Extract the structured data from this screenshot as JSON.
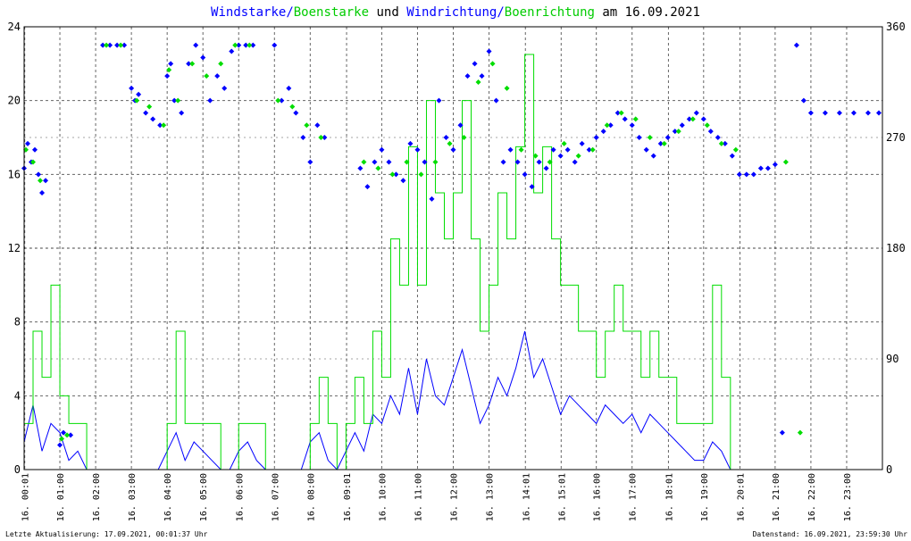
{
  "title": {
    "part1": "Windstarke/",
    "part2": "Boenstarke",
    "part3": " und ",
    "part4": "Windrichtung/",
    "part5": "Boenrichtung",
    "part6": " am 16.09.2021"
  },
  "footer": {
    "left": "Letzte Aktualisierung: 17.09.2021, 00:01:37 Uhr",
    "right": "Datenstand: 16.09.2021, 23:59:30 Uhr"
  },
  "colors": {
    "wind": "#0000ff",
    "gust": "#00dd00",
    "title": "#0000ff",
    "grid": "#000000"
  },
  "chart_data": {
    "type": "line",
    "left_axis": {
      "ylim": [
        0,
        24
      ],
      "ticks": [
        0,
        4,
        8,
        12,
        16,
        20,
        24
      ]
    },
    "right_axis": {
      "ylim": [
        0,
        360
      ],
      "ticks": [
        0,
        90,
        180,
        270,
        360
      ]
    },
    "x_tick_labels": [
      "16. 00:01",
      "16. 01:00",
      "16. 02:00",
      "16. 03:00",
      "16. 04:00",
      "16. 05:00",
      "16. 06:00",
      "16. 07:00",
      "16. 08:00",
      "16. 09:01",
      "16. 10:00",
      "16. 11:00",
      "16. 12:00",
      "16. 13:00",
      "16. 14:01",
      "16. 15:01",
      "16. 16:00",
      "16. 17:00",
      "16. 18:01",
      "16. 19:00",
      "16. 20:01",
      "16. 21:00",
      "16. 22:00",
      "16. 23:00"
    ],
    "x_tick_hours": [
      0.017,
      1,
      2,
      3,
      4,
      5,
      6,
      7,
      8,
      9.017,
      10,
      11,
      12,
      13,
      14.017,
      15.017,
      16,
      17,
      18.017,
      19,
      20.017,
      21,
      22,
      23
    ],
    "xlim_hours": [
      0,
      24
    ],
    "grid": true,
    "series": [
      {
        "name": "Windstarke",
        "axis": "left",
        "style": "line",
        "x": [
          0.0,
          0.25,
          0.5,
          0.75,
          1.0,
          1.25,
          1.5,
          1.75,
          2.0,
          2.25,
          2.5,
          2.75,
          3.0,
          3.25,
          3.5,
          3.75,
          4.0,
          4.25,
          4.5,
          4.75,
          5.0,
          5.25,
          5.5,
          5.75,
          6.0,
          6.25,
          6.5,
          6.75,
          7.0,
          7.25,
          7.5,
          7.75,
          8.0,
          8.25,
          8.5,
          8.75,
          9.0,
          9.25,
          9.5,
          9.75,
          10.0,
          10.25,
          10.5,
          10.75,
          11.0,
          11.25,
          11.5,
          11.75,
          12.0,
          12.25,
          12.5,
          12.75,
          13.0,
          13.25,
          13.5,
          13.75,
          14.0,
          14.25,
          14.5,
          14.75,
          15.0,
          15.25,
          15.5,
          15.75,
          16.0,
          16.25,
          16.5,
          16.75,
          17.0,
          17.25,
          17.5,
          17.75,
          18.0,
          18.25,
          18.5,
          18.75,
          19.0,
          19.25,
          19.5,
          19.75,
          20.0
        ],
        "y": [
          1.5,
          3.5,
          1.0,
          2.5,
          2.0,
          0.5,
          1.0,
          0.0,
          0.0,
          0.0,
          0.0,
          0.0,
          0.0,
          0.0,
          0.0,
          0.0,
          1.0,
          2.0,
          0.5,
          1.5,
          1.0,
          0.5,
          0.0,
          0.0,
          1.0,
          1.5,
          0.5,
          0.0,
          0.0,
          0.0,
          0.0,
          0.0,
          1.5,
          2.0,
          0.5,
          0.0,
          1.0,
          2.0,
          1.0,
          3.0,
          2.5,
          4.0,
          3.0,
          5.5,
          3.0,
          6.0,
          4.0,
          3.5,
          5.0,
          6.5,
          4.5,
          2.5,
          3.5,
          5.0,
          4.0,
          5.5,
          7.5,
          5.0,
          6.0,
          4.5,
          3.0,
          4.0,
          3.5,
          3.0,
          2.5,
          3.5,
          3.0,
          2.5,
          3.0,
          2.0,
          3.0,
          2.5,
          2.0,
          1.5,
          1.0,
          0.5,
          0.5,
          1.5,
          1.0,
          0.0,
          0.0
        ]
      },
      {
        "name": "Boenstarke",
        "axis": "left",
        "style": "step",
        "x": [
          0.0,
          0.25,
          0.5,
          0.75,
          1.0,
          1.25,
          1.5,
          1.75,
          2.0,
          2.25,
          2.5,
          2.75,
          3.0,
          3.25,
          3.5,
          3.75,
          4.0,
          4.25,
          4.5,
          4.75,
          5.0,
          5.25,
          5.5,
          5.75,
          6.0,
          6.25,
          6.5,
          6.75,
          7.0,
          7.25,
          7.5,
          7.75,
          8.0,
          8.25,
          8.5,
          8.75,
          9.0,
          9.25,
          9.5,
          9.75,
          10.0,
          10.25,
          10.5,
          10.75,
          11.0,
          11.25,
          11.5,
          11.75,
          12.0,
          12.25,
          12.5,
          12.75,
          13.0,
          13.25,
          13.5,
          13.75,
          14.0,
          14.25,
          14.5,
          14.75,
          15.0,
          15.25,
          15.5,
          15.75,
          16.0,
          16.25,
          16.5,
          16.75,
          17.0,
          17.25,
          17.5,
          17.75,
          18.0,
          18.25,
          18.5,
          18.75,
          19.0,
          19.25,
          19.5,
          19.75,
          20.0
        ],
        "y": [
          2.5,
          7.5,
          5.0,
          10.0,
          4.0,
          2.5,
          2.5,
          0.0,
          0.0,
          0.0,
          0.0,
          0.0,
          0.0,
          0.0,
          0.0,
          0.0,
          2.5,
          7.5,
          2.5,
          2.5,
          2.5,
          2.5,
          0.0,
          0.0,
          2.5,
          2.5,
          2.5,
          0.0,
          0.0,
          0.0,
          0.0,
          0.0,
          2.5,
          5.0,
          2.5,
          0.0,
          2.5,
          5.0,
          2.5,
          7.5,
          5.0,
          12.5,
          10.0,
          17.5,
          10.0,
          20.0,
          15.0,
          12.5,
          15.0,
          20.0,
          12.5,
          7.5,
          10.0,
          15.0,
          12.5,
          17.5,
          22.5,
          15.0,
          17.5,
          12.5,
          10.0,
          10.0,
          7.5,
          7.5,
          5.0,
          7.5,
          10.0,
          7.5,
          7.5,
          5.0,
          7.5,
          5.0,
          5.0,
          2.5,
          2.5,
          2.5,
          2.5,
          10.0,
          5.0,
          0.0,
          0.0
        ]
      },
      {
        "name": "Windrichtung",
        "axis": "right",
        "style": "points",
        "x": [
          0.0,
          0.1,
          0.2,
          0.3,
          0.4,
          0.5,
          0.6,
          1.0,
          1.1,
          1.3,
          2.2,
          2.4,
          2.6,
          2.8,
          3.0,
          3.1,
          3.2,
          3.4,
          3.6,
          3.8,
          4.0,
          4.1,
          4.2,
          4.4,
          4.6,
          4.8,
          5.0,
          5.2,
          5.4,
          5.6,
          5.8,
          6.0,
          6.2,
          6.4,
          7.0,
          7.2,
          7.4,
          7.6,
          7.8,
          8.0,
          8.2,
          8.4,
          9.4,
          9.6,
          9.8,
          10.0,
          10.2,
          10.4,
          10.6,
          10.8,
          11.0,
          11.2,
          11.4,
          11.6,
          11.8,
          12.0,
          12.2,
          12.4,
          12.6,
          12.8,
          13.0,
          13.2,
          13.4,
          13.6,
          13.8,
          14.0,
          14.2,
          14.4,
          14.6,
          14.8,
          15.0,
          15.2,
          15.4,
          15.6,
          15.8,
          16.0,
          16.2,
          16.4,
          16.6,
          16.8,
          17.0,
          17.2,
          17.4,
          17.6,
          17.8,
          18.0,
          18.2,
          18.4,
          18.6,
          18.8,
          19.0,
          19.2,
          19.4,
          19.6,
          19.8,
          20.0,
          20.2,
          20.4,
          20.6,
          20.8,
          21.0,
          21.2,
          21.6,
          21.8,
          22.0,
          22.4,
          22.8,
          23.2,
          23.6,
          23.9
        ],
        "y": [
          245,
          265,
          250,
          260,
          240,
          225,
          235,
          20,
          30,
          28,
          345,
          345,
          345,
          345,
          310,
          300,
          305,
          290,
          285,
          280,
          320,
          330,
          300,
          290,
          330,
          345,
          335,
          300,
          320,
          310,
          340,
          345,
          345,
          345,
          345,
          300,
          310,
          290,
          270,
          250,
          280,
          270,
          245,
          230,
          250,
          260,
          250,
          240,
          235,
          265,
          260,
          250,
          220,
          300,
          270,
          260,
          280,
          320,
          330,
          320,
          340,
          300,
          250,
          260,
          250,
          240,
          230,
          250,
          245,
          260,
          255,
          260,
          250,
          265,
          260,
          270,
          275,
          280,
          290,
          285,
          280,
          270,
          260,
          255,
          265,
          270,
          275,
          280,
          285,
          290,
          285,
          275,
          270,
          265,
          255,
          240,
          240,
          240,
          245,
          245,
          248,
          30,
          345,
          300,
          290,
          290,
          290,
          290,
          290,
          290
        ]
      },
      {
        "name": "Boenrichtung",
        "axis": "right",
        "style": "points",
        "x": [
          0.05,
          0.25,
          0.45,
          1.05,
          1.2,
          2.3,
          2.7,
          3.15,
          3.5,
          3.9,
          4.05,
          4.3,
          4.7,
          5.1,
          5.5,
          5.9,
          6.3,
          7.1,
          7.5,
          7.9,
          8.3,
          9.5,
          9.9,
          10.3,
          10.7,
          11.1,
          11.5,
          11.9,
          12.3,
          12.7,
          13.1,
          13.5,
          13.9,
          14.3,
          14.7,
          15.1,
          15.5,
          15.9,
          16.3,
          16.7,
          17.1,
          17.5,
          17.9,
          18.3,
          18.7,
          19.1,
          19.5,
          19.9,
          21.3,
          21.7
        ],
        "y": [
          260,
          250,
          235,
          25,
          28,
          345,
          345,
          300,
          295,
          280,
          325,
          300,
          330,
          320,
          330,
          345,
          345,
          300,
          295,
          280,
          270,
          250,
          245,
          240,
          250,
          240,
          250,
          265,
          270,
          315,
          330,
          310,
          260,
          255,
          250,
          265,
          255,
          260,
          280,
          290,
          285,
          270,
          265,
          275,
          285,
          280,
          265,
          260,
          250,
          30
        ]
      }
    ]
  }
}
